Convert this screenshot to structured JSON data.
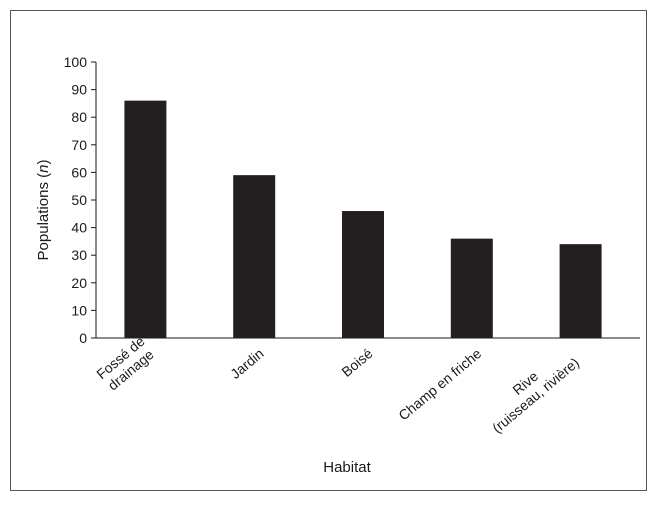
{
  "chart_data": {
    "type": "bar",
    "categories": [
      "Fossé de drainage",
      "Jardin",
      "Boisé",
      "Champ en friche",
      "Rive (ruisseau, rivière)"
    ],
    "category_label_lines": [
      [
        "Fossé de",
        "drainage"
      ],
      [
        "Jardin"
      ],
      [
        "Boisé"
      ],
      [
        "Champ en friche"
      ],
      [
        "Rive",
        "(ruisseau, rivière)"
      ]
    ],
    "values": [
      86,
      59,
      46,
      36,
      34
    ],
    "ylim": [
      0,
      100
    ],
    "y_ticks": [
      "0",
      "10",
      "20",
      "30",
      "40",
      "50",
      "60",
      "70",
      "80",
      "90",
      "100"
    ],
    "xlabel": "Habitat",
    "ylabel_prefix": "Populations (",
    "ylabel_var": "n",
    "ylabel_suffix": ")",
    "bar_color": "#231f20",
    "grid": false,
    "legend": "none"
  }
}
